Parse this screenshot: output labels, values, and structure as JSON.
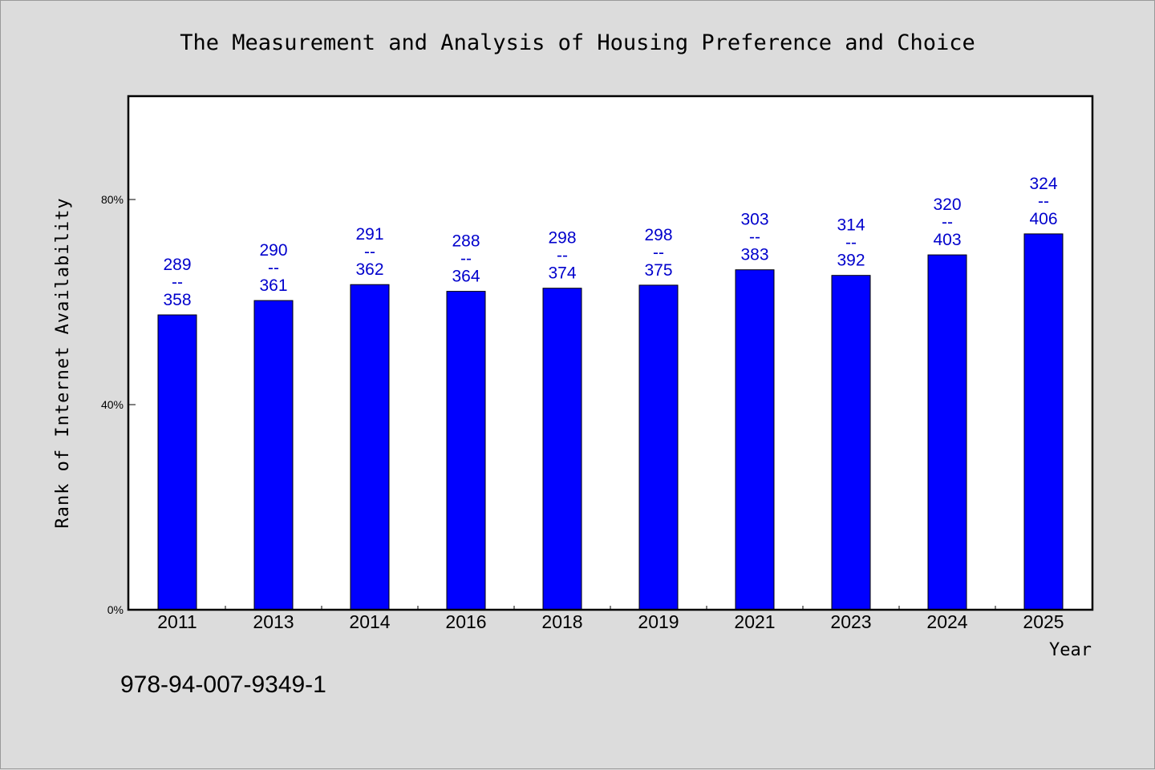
{
  "chart_data": {
    "type": "bar",
    "title": "The Measurement and Analysis of Housing Preference and Choice",
    "xlabel": "Year",
    "ylabel": "Rank of Internet Availability",
    "categories": [
      "2011",
      "2013",
      "2014",
      "2016",
      "2018",
      "2019",
      "2021",
      "2023",
      "2024",
      "2025"
    ],
    "values": [
      57.5,
      60.3,
      63.4,
      62.1,
      62.7,
      63.3,
      66.3,
      65.2,
      69.2,
      73.3
    ],
    "labels": [
      [
        "289",
        "--",
        "358"
      ],
      [
        "290",
        "--",
        "361"
      ],
      [
        "291",
        "--",
        "362"
      ],
      [
        "288",
        "--",
        "364"
      ],
      [
        "298",
        "--",
        "374"
      ],
      [
        "298",
        "--",
        "375"
      ],
      [
        "303",
        "--",
        "383"
      ],
      [
        "314",
        "--",
        "392"
      ],
      [
        "320",
        "--",
        "403"
      ],
      [
        "324",
        "--",
        "406"
      ]
    ],
    "ylim": [
      0,
      100
    ],
    "yticks": [
      0,
      40,
      80
    ],
    "ytick_labels": [
      "0%",
      "40%",
      "80%"
    ],
    "bar_color": "#0000ff",
    "label_color": "#0000cc",
    "grid": false,
    "legend": "none"
  },
  "footer": {
    "isbn": "978-94-007-9349-1"
  }
}
